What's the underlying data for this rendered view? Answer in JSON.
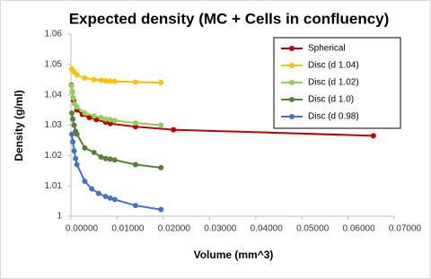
{
  "chart_data": {
    "type": "line",
    "title": "Expected density (MC + Cells in confluency)",
    "xlabel": "Volume (mm^3)",
    "ylabel": "Density (g/ml)",
    "xlim": [
      0,
      0.07
    ],
    "ylim": [
      1,
      1.06
    ],
    "xticks": [
      {
        "value": 0,
        "label": "0.00000"
      },
      {
        "value": 0.01,
        "label": "0.01000"
      },
      {
        "value": 0.02,
        "label": "0.02000"
      },
      {
        "value": 0.03,
        "label": "0.03000"
      },
      {
        "value": 0.04,
        "label": "0.04000"
      },
      {
        "value": 0.05,
        "label": "0.05000"
      },
      {
        "value": 0.06,
        "label": "0.06000"
      },
      {
        "value": 0.07,
        "label": "0.07000"
      }
    ],
    "yticks": [
      1,
      1.01,
      1.02,
      1.03,
      1.04,
      1.05,
      1.06
    ],
    "legend": "top-right",
    "series": [
      {
        "name": "Spherical",
        "color": "#c00000",
        "x": [
          0.0001,
          0.0003,
          0.0006,
          0.0013,
          0.0025,
          0.004,
          0.0055,
          0.0075,
          0.0085,
          0.014,
          0.0222,
          0.0655
        ],
        "values": [
          1.0432,
          1.041,
          1.038,
          1.035,
          1.0335,
          1.0325,
          1.0318,
          1.031,
          1.0305,
          1.0295,
          1.0285,
          1.0265
        ]
      },
      {
        "name": "Disc (d 1.04)",
        "color": "#ffc000",
        "x": [
          0.0002,
          0.0007,
          0.0013,
          0.003,
          0.005,
          0.0065,
          0.0075,
          0.0085,
          0.0095,
          0.014,
          0.0195
        ],
        "values": [
          1.0485,
          1.0475,
          1.0465,
          1.0455,
          1.045,
          1.0448,
          1.0446,
          1.0445,
          1.0444,
          1.0442,
          1.044
        ]
      },
      {
        "name": "Disc (d 1.02)",
        "color": "#92d050",
        "x": [
          0.0001,
          0.0003,
          0.0005,
          0.0008,
          0.0013,
          0.003,
          0.005,
          0.0065,
          0.0075,
          0.0085,
          0.0095,
          0.014,
          0.0195
        ],
        "values": [
          1.043,
          1.041,
          1.039,
          1.037,
          1.036,
          1.034,
          1.033,
          1.0325,
          1.032,
          1.0318,
          1.0315,
          1.0307,
          1.03
        ]
      },
      {
        "name": "Disc (d 1.0)",
        "color": "#548235",
        "x": [
          0.0002,
          0.0004,
          0.0007,
          0.001,
          0.0013,
          0.003,
          0.005,
          0.0065,
          0.0075,
          0.0085,
          0.0095,
          0.014,
          0.0195
        ],
        "values": [
          1.034,
          1.032,
          1.03,
          1.028,
          1.027,
          1.0225,
          1.021,
          1.0195,
          1.019,
          1.0188,
          1.0185,
          1.017,
          1.016
        ]
      },
      {
        "name": "Disc (d 0.98)",
        "color": "#4472c4",
        "x": [
          0.0002,
          0.0004,
          0.0007,
          0.001,
          0.0013,
          0.003,
          0.0045,
          0.006,
          0.0075,
          0.0085,
          0.0095,
          0.014,
          0.0195
        ],
        "values": [
          1.027,
          1.0245,
          1.0215,
          1.019,
          1.017,
          1.0115,
          1.009,
          1.0075,
          1.0065,
          1.006,
          1.0055,
          1.0035,
          1.0022
        ]
      }
    ]
  }
}
